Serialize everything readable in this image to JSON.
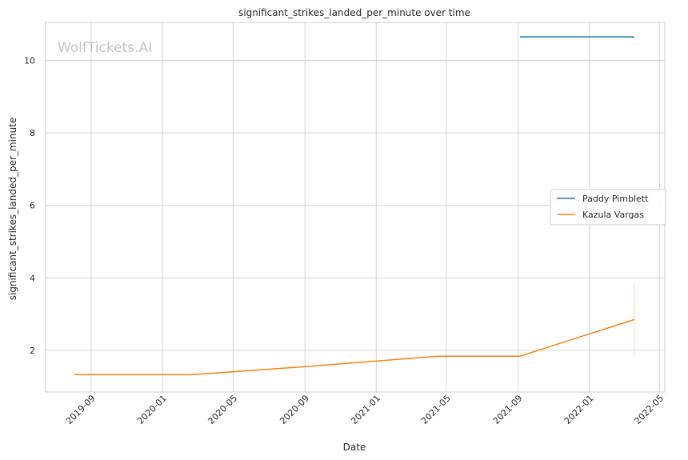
{
  "chart_data": {
    "type": "line",
    "title": "significant_strikes_landed_per_minute over time",
    "xlabel": "Date",
    "ylabel": "significant_strikes_landed_per_minute",
    "watermark": "WolfTickets.AI",
    "x_ticks": [
      "2019-09",
      "2020-01",
      "2020-05",
      "2020-09",
      "2021-01",
      "2021-05",
      "2021-09",
      "2022-01",
      "2022-05"
    ],
    "y_ticks": [
      2,
      4,
      6,
      8,
      10
    ],
    "xlim": [
      "2019-06-15",
      "2022-05-10"
    ],
    "ylim": [
      0.85,
      11.05
    ],
    "grid": true,
    "legend_position": "center-right",
    "series": [
      {
        "name": "Paddy Pimblett",
        "color": "#1f77b4",
        "points": [
          {
            "x": "2021-09-04",
            "y": 10.65
          },
          {
            "x": "2022-03-19",
            "y": 10.65
          }
        ]
      },
      {
        "name": "Kazula Vargas",
        "color": "#ff7f0e",
        "points": [
          {
            "x": "2019-08-03",
            "y": 1.33
          },
          {
            "x": "2020-02-22",
            "y": 1.33
          },
          {
            "x": "2020-09-12",
            "y": 1.56
          },
          {
            "x": "2021-04-17",
            "y": 1.84
          },
          {
            "x": "2021-09-04",
            "y": 1.84
          },
          {
            "x": "2022-03-19",
            "y": 2.85
          }
        ],
        "band": {
          "x": "2022-03-19",
          "y_low": 1.85,
          "y_high": 3.85
        }
      }
    ]
  }
}
